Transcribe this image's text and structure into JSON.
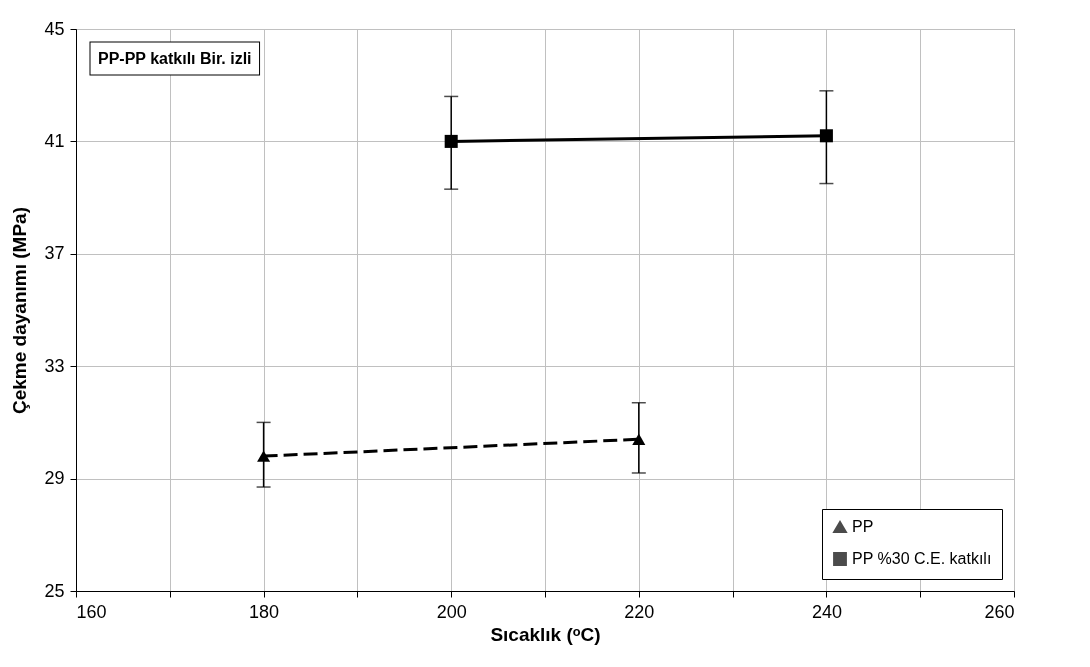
{
  "chart_data": {
    "type": "line",
    "xlabel": "Sıcaklık (ᵒC)",
    "ylabel": "Çekme dayanımı (MPa)",
    "annotations": [
      "PP-PP katkılı Bir. izli"
    ],
    "series": [
      {
        "name": "PP",
        "color": "#000000",
        "marker": "triangle",
        "line_style": "dashed",
        "x": [
          180,
          220
        ],
        "values": [
          29.8,
          30.4
        ],
        "errors": [
          [
            28.7,
            31.0
          ],
          [
            29.2,
            31.7
          ]
        ]
      },
      {
        "name": "PP %30 C.E. katkılı",
        "color": "#000000",
        "marker": "square",
        "line_style": "solid",
        "x": [
          200,
          240
        ],
        "values": [
          41.0,
          41.2
        ],
        "errors": [
          [
            39.3,
            42.6
          ],
          [
            39.5,
            42.8
          ]
        ]
      }
    ],
    "xlim": [
      160,
      260
    ],
    "xticks": [
      160,
      {
        "value": 170,
        "label": null
      },
      180,
      {
        "value": 190,
        "label": null
      },
      200,
      {
        "value": 210,
        "label": null
      },
      220,
      {
        "value": 230,
        "label": null
      },
      240,
      {
        "value": 250,
        "label": null
      },
      260
    ],
    "ylim": [
      25,
      45
    ],
    "yticks": [
      25,
      29,
      33,
      37,
      41,
      45
    ],
    "grid": true,
    "legend": "bottom right"
  }
}
